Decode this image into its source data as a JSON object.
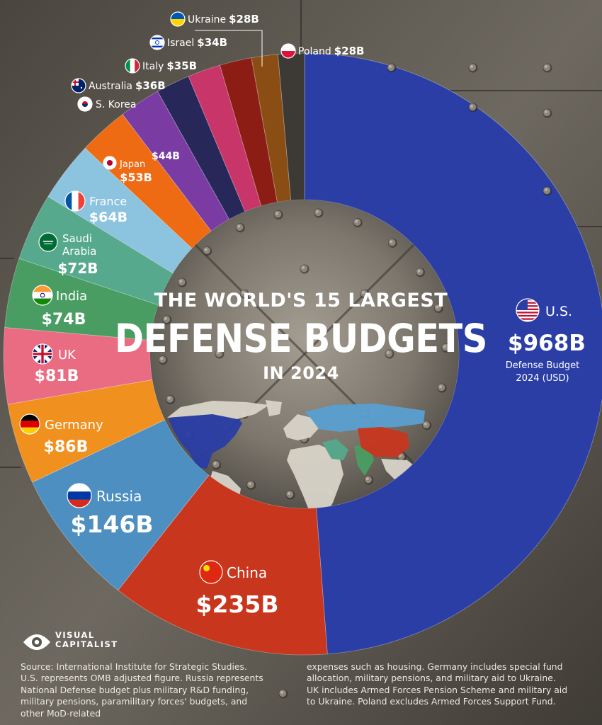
{
  "title": {
    "line1": "THE WORLD'S 15 LARGEST",
    "line2": "DEFENSE BUDGETS",
    "line3": "IN 2024"
  },
  "us_note": {
    "line1": "Defense Budget",
    "line2": "2024 (USD)"
  },
  "brand": {
    "line1": "VISUAL",
    "line2": "CAPITALIST"
  },
  "footnote": {
    "left": [
      "Source: International Institute for Strategic Studies.",
      "U.S. represents OMB adjusted figure. Russia represents",
      "National Defense budget plus military R&D funding,",
      "military pensions, paramilitary  forces' budgets, and",
      "other MoD-related"
    ],
    "right": [
      "expenses such as housing. Germany includes special fund",
      "allocation, military pensions, and military aid to Ukraine.",
      "UK includes Armed Forces Pension Scheme and military aid",
      "to Ukraine. Poland excludes Armed Forces Support Fund."
    ]
  },
  "chart_data": {
    "type": "pie",
    "style": "donut",
    "unit": "USD billions",
    "categories": [
      "U.S.",
      "China",
      "Russia",
      "Germany",
      "UK",
      "India",
      "Saudi Arabia",
      "France",
      "Japan",
      "S. Korea",
      "Australia",
      "Italy",
      "Israel",
      "Ukraine",
      "Poland"
    ],
    "values": [
      968,
      235,
      146,
      86,
      81,
      74,
      72,
      64,
      53,
      44,
      36,
      35,
      34,
      28,
      28
    ],
    "value_labels": [
      "$968B",
      "$235B",
      "$146B",
      "$86B",
      "$81B",
      "$74B",
      "$72B",
      "$64B",
      "$53B",
      "$44B",
      "$36B",
      "$35B",
      "$34B",
      "$28B",
      "$28B"
    ],
    "colors": [
      "#2b3ea6",
      "#c8361e",
      "#4d8fc1",
      "#f0901f",
      "#ea6c83",
      "#4a9d62",
      "#56a98d",
      "#8cc3df",
      "#ee6b14",
      "#7a3ca3",
      "#27275a",
      "#c83568",
      "#8b1d14",
      "#8a4e14",
      "#3d3a36"
    ],
    "flags": [
      "us-flag-icon",
      "china-flag-icon",
      "russia-flag-icon",
      "germany-flag-icon",
      "uk-flag-icon",
      "india-flag-icon",
      "saudi-flag-icon",
      "france-flag-icon",
      "japan-flag-icon",
      "korea-flag-icon",
      "australia-flag-icon",
      "italy-flag-icon",
      "israel-flag-icon",
      "ukraine-flag-icon",
      "poland-flag-icon"
    ],
    "legend": "none"
  }
}
